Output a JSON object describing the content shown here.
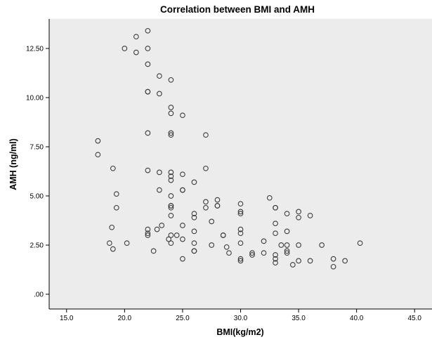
{
  "chart_data": {
    "type": "scatter",
    "title": "Correlation between BMI and AMH",
    "xlabel": "BMI(kg/m2)",
    "ylabel": "AMH (ng/ml)",
    "xlim": [
      13.5,
      46.5
    ],
    "ylim": [
      -0.75,
      14.0
    ],
    "xticks": [
      15.0,
      20.0,
      25.0,
      30.0,
      35.0,
      40.0,
      45.0
    ],
    "xtick_labels": [
      "15.0",
      "20.0",
      "25.0",
      "30.0",
      "35.0",
      "40.0",
      "45.0"
    ],
    "yticks": [
      0,
      2.5,
      5.0,
      7.5,
      10.0,
      12.5
    ],
    "ytick_labels": [
      ".00",
      "2.50",
      "5.00",
      "7.50",
      "10.00",
      "12.50"
    ],
    "grid": false,
    "legend": "none",
    "colors": {
      "plot_background": "#ececec",
      "marker_stroke": "#3c3c3c",
      "axis": "#000000"
    },
    "points": [
      {
        "x": 21.0,
        "y": 13.1
      },
      {
        "x": 22.0,
        "y": 13.4
      },
      {
        "x": 20.0,
        "y": 12.5
      },
      {
        "x": 21.0,
        "y": 12.3
      },
      {
        "x": 22.0,
        "y": 12.5
      },
      {
        "x": 22.0,
        "y": 11.7
      },
      {
        "x": 23.0,
        "y": 11.1
      },
      {
        "x": 24.0,
        "y": 10.9
      },
      {
        "x": 22.0,
        "y": 10.3
      },
      {
        "x": 22.0,
        "y": 10.3
      },
      {
        "x": 23.0,
        "y": 10.2
      },
      {
        "x": 24.0,
        "y": 9.5
      },
      {
        "x": 24.0,
        "y": 9.2
      },
      {
        "x": 25.0,
        "y": 9.1
      },
      {
        "x": 22.0,
        "y": 8.2
      },
      {
        "x": 24.0,
        "y": 8.2
      },
      {
        "x": 24.0,
        "y": 8.1
      },
      {
        "x": 27.0,
        "y": 8.1
      },
      {
        "x": 17.7,
        "y": 7.8
      },
      {
        "x": 17.7,
        "y": 7.1
      },
      {
        "x": 19.0,
        "y": 6.4
      },
      {
        "x": 22.0,
        "y": 6.3
      },
      {
        "x": 23.0,
        "y": 6.2
      },
      {
        "x": 24.0,
        "y": 6.2
      },
      {
        "x": 24.0,
        "y": 6.0
      },
      {
        "x": 25.0,
        "y": 6.1
      },
      {
        "x": 27.0,
        "y": 6.4
      },
      {
        "x": 24.0,
        "y": 5.8
      },
      {
        "x": 26.0,
        "y": 5.7
      },
      {
        "x": 23.0,
        "y": 5.3
      },
      {
        "x": 25.0,
        "y": 5.3
      },
      {
        "x": 25.0,
        "y": 5.3
      },
      {
        "x": 19.3,
        "y": 5.1
      },
      {
        "x": 24.0,
        "y": 5.0
      },
      {
        "x": 19.3,
        "y": 4.4
      },
      {
        "x": 24.0,
        "y": 4.5
      },
      {
        "x": 24.0,
        "y": 4.5
      },
      {
        "x": 24.0,
        "y": 4.4
      },
      {
        "x": 27.0,
        "y": 4.7
      },
      {
        "x": 27.0,
        "y": 4.4
      },
      {
        "x": 28.0,
        "y": 4.8
      },
      {
        "x": 28.0,
        "y": 4.5
      },
      {
        "x": 28.0,
        "y": 4.5
      },
      {
        "x": 30.0,
        "y": 4.6
      },
      {
        "x": 30.0,
        "y": 4.2
      },
      {
        "x": 30.0,
        "y": 4.1
      },
      {
        "x": 32.5,
        "y": 4.9
      },
      {
        "x": 33.0,
        "y": 4.4
      },
      {
        "x": 33.0,
        "y": 4.4
      },
      {
        "x": 34.0,
        "y": 4.1
      },
      {
        "x": 35.0,
        "y": 4.2
      },
      {
        "x": 35.0,
        "y": 3.9
      },
      {
        "x": 36.0,
        "y": 4.0
      },
      {
        "x": 24.0,
        "y": 4.0
      },
      {
        "x": 26.0,
        "y": 4.1
      },
      {
        "x": 26.0,
        "y": 3.9
      },
      {
        "x": 18.9,
        "y": 3.4
      },
      {
        "x": 22.0,
        "y": 3.3
      },
      {
        "x": 22.0,
        "y": 3.1
      },
      {
        "x": 22.0,
        "y": 3.0
      },
      {
        "x": 22.8,
        "y": 3.3
      },
      {
        "x": 23.2,
        "y": 3.5
      },
      {
        "x": 24.0,
        "y": 3.0
      },
      {
        "x": 25.0,
        "y": 3.5
      },
      {
        "x": 26.0,
        "y": 3.2
      },
      {
        "x": 27.5,
        "y": 3.7
      },
      {
        "x": 28.5,
        "y": 3.0
      },
      {
        "x": 28.5,
        "y": 3.0
      },
      {
        "x": 30.0,
        "y": 3.3
      },
      {
        "x": 30.0,
        "y": 3.1
      },
      {
        "x": 32.0,
        "y": 2.7
      },
      {
        "x": 33.0,
        "y": 3.6
      },
      {
        "x": 33.0,
        "y": 3.1
      },
      {
        "x": 34.0,
        "y": 3.2
      },
      {
        "x": 18.7,
        "y": 2.6
      },
      {
        "x": 19.0,
        "y": 2.3
      },
      {
        "x": 20.2,
        "y": 2.6
      },
      {
        "x": 22.5,
        "y": 2.2
      },
      {
        "x": 23.8,
        "y": 2.8
      },
      {
        "x": 24.0,
        "y": 2.6
      },
      {
        "x": 24.5,
        "y": 3.0
      },
      {
        "x": 25.0,
        "y": 2.8
      },
      {
        "x": 26.0,
        "y": 2.6
      },
      {
        "x": 26.0,
        "y": 2.2
      },
      {
        "x": 26.0,
        "y": 2.2
      },
      {
        "x": 27.5,
        "y": 2.5
      },
      {
        "x": 28.8,
        "y": 2.4
      },
      {
        "x": 29.0,
        "y": 2.1
      },
      {
        "x": 30.0,
        "y": 2.6
      },
      {
        "x": 31.0,
        "y": 2.1
      },
      {
        "x": 31.0,
        "y": 2.0
      },
      {
        "x": 32.0,
        "y": 2.1
      },
      {
        "x": 33.0,
        "y": 2.0
      },
      {
        "x": 33.5,
        "y": 2.5
      },
      {
        "x": 34.0,
        "y": 2.5
      },
      {
        "x": 34.0,
        "y": 2.2
      },
      {
        "x": 34.0,
        "y": 2.1
      },
      {
        "x": 35.0,
        "y": 2.5
      },
      {
        "x": 37.0,
        "y": 2.5
      },
      {
        "x": 40.3,
        "y": 2.6
      },
      {
        "x": 25.0,
        "y": 1.8
      },
      {
        "x": 30.0,
        "y": 1.8
      },
      {
        "x": 30.0,
        "y": 1.7
      },
      {
        "x": 33.0,
        "y": 1.8
      },
      {
        "x": 33.0,
        "y": 1.6
      },
      {
        "x": 34.5,
        "y": 1.5
      },
      {
        "x": 35.0,
        "y": 1.7
      },
      {
        "x": 36.0,
        "y": 1.7
      },
      {
        "x": 38.0,
        "y": 1.8
      },
      {
        "x": 38.0,
        "y": 1.4
      },
      {
        "x": 39.0,
        "y": 1.7
      }
    ]
  }
}
